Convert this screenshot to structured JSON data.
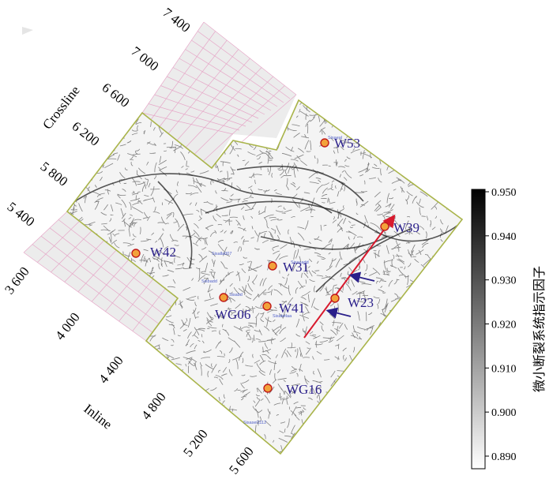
{
  "axes": {
    "crossline_label": "Crossline",
    "inline_label": "Inline",
    "crossline_ticks": [
      "7 400",
      "7 000",
      "6 600",
      "6 200",
      "5 800",
      "5 400"
    ],
    "inline_ticks": [
      "3 600",
      "4 000",
      "4 400",
      "4 800",
      "5 200",
      "5 600"
    ]
  },
  "wells": [
    {
      "name": "W53"
    },
    {
      "name": "W39"
    },
    {
      "name": "W42"
    },
    {
      "name": "W31"
    },
    {
      "name": "WG06"
    },
    {
      "name": "W41"
    },
    {
      "name": "W23"
    },
    {
      "name": "WG16"
    }
  ],
  "minor_wells": [
    "Sisalla007",
    "Sisasadd",
    "Sisbadd",
    "Sisabd",
    "Sisabelaa",
    "Sisasel1112",
    "Sisaeal"
  ],
  "colorbar": {
    "title": "微小断裂系统指示因子",
    "ticks": [
      "0.950",
      "0.940",
      "0.930",
      "0.920",
      "0.910",
      "0.900",
      "0.890"
    ],
    "min": 0.89,
    "max": 0.95
  },
  "colors": {
    "survey_outline": "#a9b44a",
    "grid_fill": "#ececec",
    "grid_line": "#e6a8c8",
    "well_label": "#2a1f8a",
    "trend_arrow": "#d81a2e",
    "stress_arrow": "#2a1f8a",
    "well_marker": "#f2a23a"
  }
}
